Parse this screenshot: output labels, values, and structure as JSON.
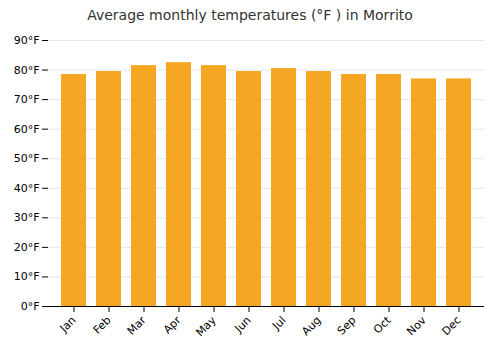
{
  "chart_data": {
    "type": "bar",
    "title": "Average monthly temperatures (°F ) in Morrito",
    "categories": [
      "Jan",
      "Feb",
      "Mar",
      "Apr",
      "May",
      "Jun",
      "Jul",
      "Aug",
      "Sep",
      "Oct",
      "Nov",
      "Dec"
    ],
    "values": [
      78.5,
      79.5,
      81.5,
      82.5,
      81.5,
      79.5,
      80.5,
      79.5,
      78.5,
      78.5,
      77.0,
      77.0
    ],
    "color": "#F5A623",
    "ylim": [
      0,
      90
    ],
    "yticks": [
      {
        "value": 0,
        "label": "0°F"
      },
      {
        "value": 10,
        "label": "10°F"
      },
      {
        "value": 20,
        "label": "20°F"
      },
      {
        "value": 30,
        "label": "30°F"
      },
      {
        "value": 40,
        "label": "40°F"
      },
      {
        "value": 50,
        "label": "50°F"
      },
      {
        "value": 60,
        "label": "60°F"
      },
      {
        "value": 70,
        "label": "70°F"
      },
      {
        "value": 80,
        "label": "80°F"
      },
      {
        "value": 90,
        "label": "90°F"
      }
    ],
    "grid": true
  }
}
